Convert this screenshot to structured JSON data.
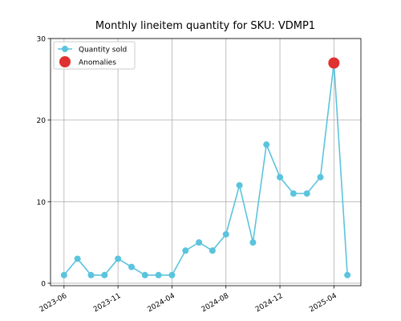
{
  "chart_data": {
    "type": "line",
    "title": "Monthly lineitem quantity for SKU: VDMP1",
    "categories": [
      "2023-06",
      null,
      null,
      null,
      "2023-11",
      null,
      null,
      null,
      "2024-04",
      null,
      null,
      null,
      "2024-08",
      null,
      null,
      null,
      "2024-12",
      null,
      null,
      null,
      "2025-04",
      null
    ],
    "series": [
      {
        "name": "Quantity sold",
        "color": "#5bc4dd",
        "mode": "line",
        "values": [
          1,
          3,
          1,
          1,
          3,
          2,
          1,
          1,
          1,
          4,
          5,
          4,
          6,
          12,
          5,
          17,
          13,
          11,
          11,
          13,
          27,
          1
        ]
      },
      {
        "name": "Anomalies",
        "color": "#e03030",
        "mode": "markers",
        "values": [
          null,
          null,
          null,
          null,
          null,
          null,
          null,
          null,
          null,
          null,
          null,
          null,
          null,
          null,
          null,
          null,
          null,
          null,
          null,
          null,
          27,
          null
        ]
      }
    ],
    "ylim": [
      -0.3,
      30
    ],
    "yticks": [
      0,
      10,
      20,
      30
    ],
    "grid": true,
    "legend": "upper left"
  }
}
